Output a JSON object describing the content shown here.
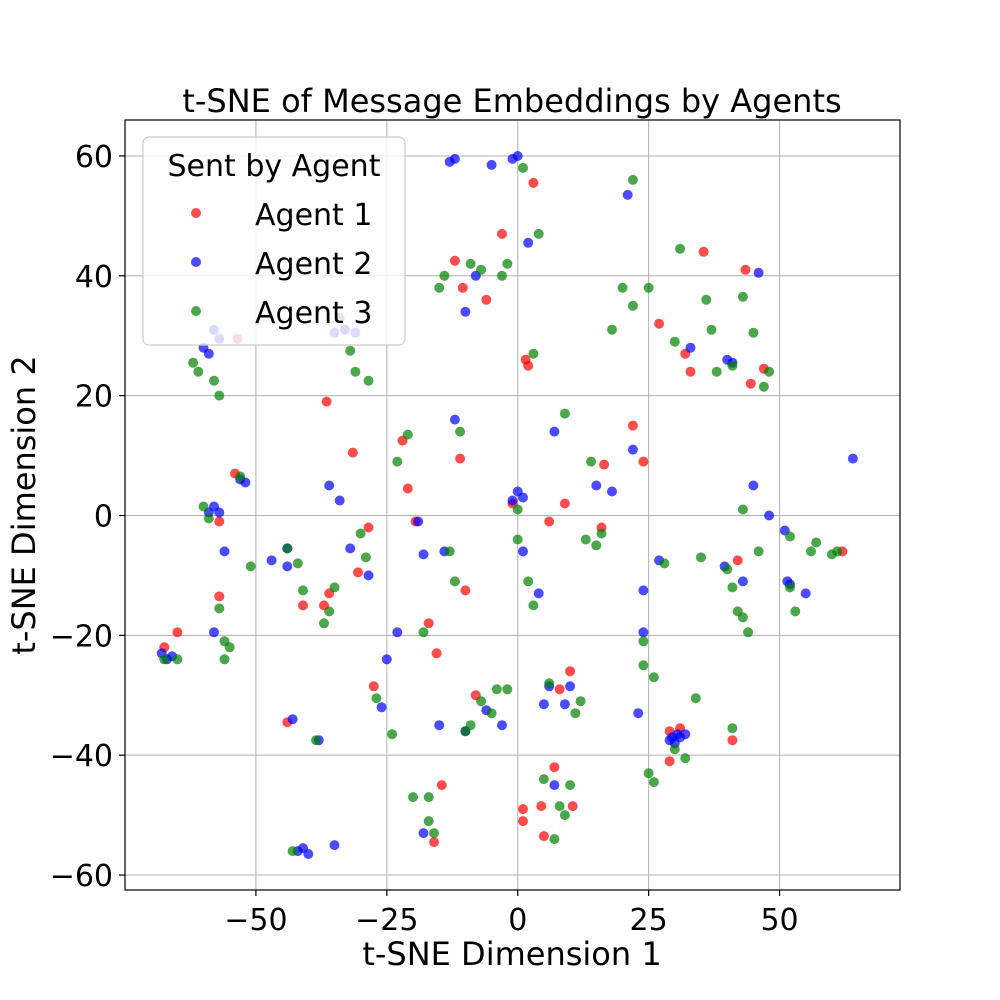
{
  "chart_data": {
    "type": "scatter",
    "title": "t-SNE of Message Embeddings by Agents",
    "xlabel": "t-SNE Dimension 1",
    "ylabel": "t-SNE Dimension 2",
    "xlim": [
      -75,
      73
    ],
    "ylim": [
      -62.5,
      66
    ],
    "xticks": [
      -50,
      -25,
      0,
      25,
      50
    ],
    "xtick_labels": [
      "−50",
      "−25",
      "0",
      "25",
      "50"
    ],
    "yticks": [
      -60,
      -40,
      -20,
      0,
      20,
      40,
      60
    ],
    "ytick_labels": [
      "−60",
      "−40",
      "−20",
      "0",
      "20",
      "40",
      "60"
    ],
    "grid": true,
    "legend": {
      "title": "Sent by Agent",
      "placement": "top-left"
    },
    "series": [
      {
        "name": "Agent 1",
        "color": "#ff0000",
        "points": [
          [
            -67.5,
            -22
          ],
          [
            -65,
            -19.5
          ],
          [
            -57,
            -13.5
          ],
          [
            -57,
            -1
          ],
          [
            -53.5,
            29.5
          ],
          [
            -54,
            7
          ],
          [
            -37,
            -15
          ],
          [
            -36.5,
            19
          ],
          [
            -36,
            -13
          ],
          [
            -31.5,
            10.5
          ],
          [
            -30.5,
            -9.5
          ],
          [
            -28.5,
            -2
          ],
          [
            -22,
            12.5
          ],
          [
            -21,
            4.5
          ],
          [
            -19.5,
            -1
          ],
          [
            -17,
            -18
          ],
          [
            -16,
            -54.5
          ],
          [
            -15.5,
            -23
          ],
          [
            -14.5,
            -45
          ],
          [
            -12,
            42.5
          ],
          [
            -11,
            9.5
          ],
          [
            -10,
            -12.5
          ],
          [
            -8,
            -30
          ],
          [
            -6,
            36
          ],
          [
            -3,
            47
          ],
          [
            -1,
            2
          ],
          [
            1,
            -49
          ],
          [
            1,
            -51
          ],
          [
            1.5,
            26
          ],
          [
            2,
            25
          ],
          [
            3,
            55.5
          ],
          [
            4.5,
            -48.5
          ],
          [
            5,
            -53.5
          ],
          [
            6,
            -1
          ],
          [
            8,
            -29
          ],
          [
            9,
            2
          ],
          [
            10,
            -26
          ],
          [
            10.5,
            -48.5
          ],
          [
            16.5,
            8.5
          ],
          [
            16,
            -2
          ],
          [
            22,
            15
          ],
          [
            24,
            9
          ],
          [
            29,
            -36
          ],
          [
            31,
            -35.5
          ],
          [
            32,
            27
          ],
          [
            35.5,
            44
          ],
          [
            41,
            -37.5
          ],
          [
            42,
            -7.5
          ],
          [
            43.5,
            41
          ],
          [
            44.5,
            22
          ],
          [
            47,
            24.5
          ],
          [
            62,
            -6
          ],
          [
            33,
            24
          ],
          [
            27,
            32
          ],
          [
            -44,
            -34.5
          ],
          [
            -41,
            -15
          ],
          [
            -27.5,
            -28.5
          ],
          [
            -10.5,
            38
          ],
          [
            7,
            -42
          ],
          [
            29,
            -41
          ]
        ]
      },
      {
        "name": "Agent 2",
        "color": "#0000ff",
        "points": [
          [
            -68,
            -23
          ],
          [
            -67,
            -24
          ],
          [
            -66,
            -23.5
          ],
          [
            -60,
            28
          ],
          [
            -59,
            27
          ],
          [
            -58,
            31
          ],
          [
            -57,
            29.5
          ],
          [
            -59,
            0.5
          ],
          [
            -58,
            1.5
          ],
          [
            -57,
            0.5
          ],
          [
            -58,
            -19.5
          ],
          [
            -53,
            6
          ],
          [
            -52,
            5.5
          ],
          [
            -47,
            -7.5
          ],
          [
            -44,
            -5.5
          ],
          [
            -43,
            -34
          ],
          [
            -42,
            -56
          ],
          [
            -41,
            -55.5
          ],
          [
            -40,
            -56.5
          ],
          [
            -38,
            -37.5
          ],
          [
            -35,
            -55
          ],
          [
            -34,
            2.5
          ],
          [
            -35,
            30.5
          ],
          [
            -33,
            31
          ],
          [
            -31,
            30.5
          ],
          [
            -32,
            -5.5
          ],
          [
            -28.5,
            -10
          ],
          [
            -26,
            -32
          ],
          [
            -25,
            -24
          ],
          [
            -23,
            -19.5
          ],
          [
            -19,
            -1
          ],
          [
            -18,
            -6.5
          ],
          [
            -18,
            -53
          ],
          [
            -14,
            -6
          ],
          [
            -13,
            59
          ],
          [
            -12,
            59.5
          ],
          [
            -12,
            16
          ],
          [
            -10,
            -36
          ],
          [
            -8,
            40
          ],
          [
            -6,
            -32.5
          ],
          [
            -5,
            58.5
          ],
          [
            -3,
            -35
          ],
          [
            -1,
            59.5
          ],
          [
            0,
            60
          ],
          [
            0,
            4
          ],
          [
            1,
            -6
          ],
          [
            2,
            45.5
          ],
          [
            4,
            -13
          ],
          [
            5,
            -31.5
          ],
          [
            6,
            -28.5
          ],
          [
            7,
            -45
          ],
          [
            7,
            14
          ],
          [
            9,
            -31.5
          ],
          [
            10,
            -28.5
          ],
          [
            15,
            5
          ],
          [
            18,
            4
          ],
          [
            21,
            53.5
          ],
          [
            22,
            11
          ],
          [
            24,
            -12.5
          ],
          [
            24,
            -19.5
          ],
          [
            27,
            -7.5
          ],
          [
            29,
            -37.5
          ],
          [
            30,
            -38
          ],
          [
            31,
            -37
          ],
          [
            29.5,
            -37
          ],
          [
            30.5,
            -36.5
          ],
          [
            32,
            -36.5
          ],
          [
            40,
            26
          ],
          [
            41,
            25.5
          ],
          [
            39.5,
            -8.5
          ],
          [
            43,
            -11
          ],
          [
            45,
            5
          ],
          [
            46,
            40.5
          ],
          [
            48,
            0
          ],
          [
            51,
            -2.5
          ],
          [
            51.5,
            -11
          ],
          [
            52,
            -11.5
          ],
          [
            55,
            -13
          ],
          [
            64,
            9.5
          ],
          [
            -1,
            2.5
          ],
          [
            1,
            3
          ],
          [
            -36,
            5
          ],
          [
            -56,
            -6
          ],
          [
            -44,
            -8.5
          ],
          [
            23,
            -33
          ],
          [
            -15,
            -35
          ],
          [
            -10,
            34
          ],
          [
            33,
            28
          ]
        ]
      },
      {
        "name": "Agent 3",
        "color": "#008000",
        "points": [
          [
            -67.5,
            -24
          ],
          [
            -65,
            -24
          ],
          [
            -62,
            25.5
          ],
          [
            -61,
            24
          ],
          [
            -60,
            1.5
          ],
          [
            -59,
            -0.5
          ],
          [
            -58,
            22.5
          ],
          [
            -57,
            20
          ],
          [
            -57,
            -15.5
          ],
          [
            -56,
            -21
          ],
          [
            -55,
            -22
          ],
          [
            -56,
            -24
          ],
          [
            -53,
            6.5
          ],
          [
            -51,
            -8.5
          ],
          [
            -44,
            -5.5
          ],
          [
            -42,
            -8
          ],
          [
            -41,
            -12.5
          ],
          [
            -38.5,
            -37.5
          ],
          [
            -37,
            -18
          ],
          [
            -36,
            -16
          ],
          [
            -35,
            -12
          ],
          [
            -34,
            33
          ],
          [
            -32,
            27.5
          ],
          [
            -31,
            24
          ],
          [
            -30,
            -3
          ],
          [
            -29,
            -7
          ],
          [
            -28.5,
            22.5
          ],
          [
            -27,
            -30.5
          ],
          [
            -24,
            -36.5
          ],
          [
            -23,
            9
          ],
          [
            -21,
            13.5
          ],
          [
            -20,
            -47
          ],
          [
            -18,
            -19.5
          ],
          [
            -17,
            -51
          ],
          [
            -17,
            -47
          ],
          [
            -16,
            -53
          ],
          [
            -15,
            38
          ],
          [
            -14,
            40
          ],
          [
            -13,
            -6
          ],
          [
            -12,
            -11
          ],
          [
            -11,
            14
          ],
          [
            -10,
            -36
          ],
          [
            -9,
            42
          ],
          [
            -7,
            -31
          ],
          [
            -7,
            41
          ],
          [
            -5,
            -33
          ],
          [
            -4,
            -29
          ],
          [
            -3,
            40
          ],
          [
            -2,
            -29
          ],
          [
            -2,
            42
          ],
          [
            0,
            1
          ],
          [
            0,
            -4
          ],
          [
            1,
            58
          ],
          [
            2,
            -11
          ],
          [
            3,
            -15
          ],
          [
            3,
            27
          ],
          [
            4,
            47
          ],
          [
            5,
            -44
          ],
          [
            6,
            -28
          ],
          [
            7,
            -54
          ],
          [
            8,
            -48.5
          ],
          [
            9,
            -50
          ],
          [
            9,
            17
          ],
          [
            10,
            -45
          ],
          [
            11,
            -33
          ],
          [
            12,
            -31
          ],
          [
            13,
            -4
          ],
          [
            14,
            9
          ],
          [
            15,
            -5
          ],
          [
            16,
            -3
          ],
          [
            18,
            31
          ],
          [
            20,
            38
          ],
          [
            22,
            35
          ],
          [
            22,
            56
          ],
          [
            24,
            -21
          ],
          [
            24,
            -25
          ],
          [
            25,
            38
          ],
          [
            25,
            -43
          ],
          [
            26,
            -44.5
          ],
          [
            26,
            -27
          ],
          [
            28,
            -8
          ],
          [
            30,
            29
          ],
          [
            31,
            44.5
          ],
          [
            32,
            -40.5
          ],
          [
            34,
            -30.5
          ],
          [
            35,
            -7
          ],
          [
            36,
            36
          ],
          [
            37,
            31
          ],
          [
            38,
            24
          ],
          [
            40,
            -9
          ],
          [
            41,
            -12
          ],
          [
            41,
            -35.5
          ],
          [
            42,
            -16
          ],
          [
            43,
            -17
          ],
          [
            43,
            1
          ],
          [
            43,
            36.5
          ],
          [
            44,
            -19.5
          ],
          [
            45,
            30.5
          ],
          [
            46,
            -6
          ],
          [
            47,
            21.5
          ],
          [
            48,
            24
          ],
          [
            52,
            -3.5
          ],
          [
            53,
            -16
          ],
          [
            56,
            -6
          ],
          [
            57,
            -4.5
          ],
          [
            60,
            -6.5
          ],
          [
            61,
            -6
          ],
          [
            41,
            25
          ],
          [
            30,
            -39
          ],
          [
            52,
            -12
          ],
          [
            -43,
            -56
          ],
          [
            -9,
            -35
          ]
        ]
      }
    ]
  }
}
